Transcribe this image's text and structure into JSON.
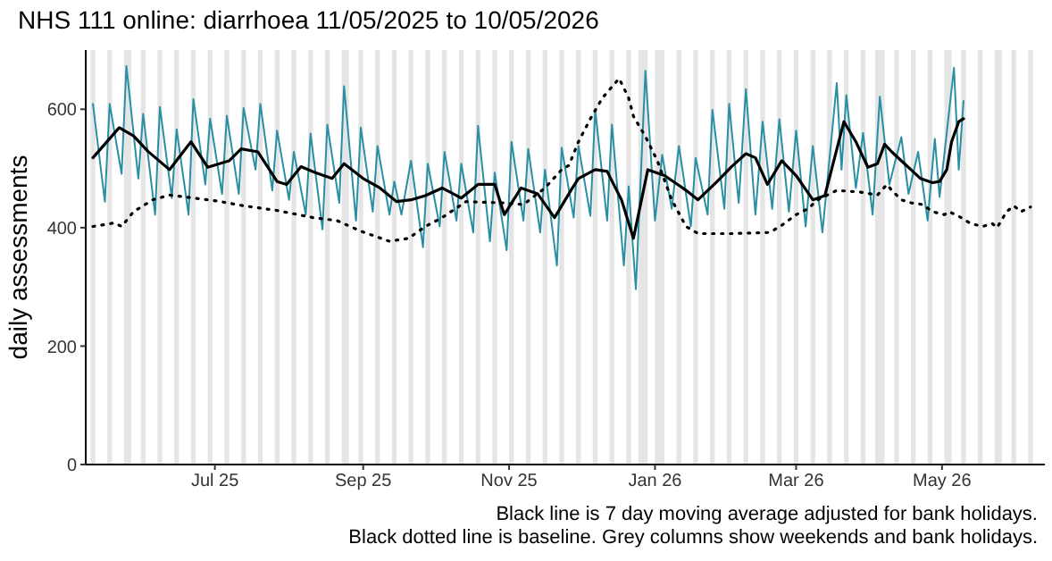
{
  "chart_data": {
    "type": "line",
    "title": "NHS 111 online: diarrhoea 11/05/2025 to 10/05/2026",
    "ylabel": "daily assessments",
    "xlim": [
      "2025-05-08",
      "2026-06-13"
    ],
    "xticks": [
      {
        "value": "2025-07-01",
        "label": "Jul 25"
      },
      {
        "value": "2025-09-01",
        "label": "Sep 25"
      },
      {
        "value": "2025-11-01",
        "label": "Nov 25"
      },
      {
        "value": "2026-01-01",
        "label": "Jan 26"
      },
      {
        "value": "2026-03-01",
        "label": "Mar 26"
      },
      {
        "value": "2026-05-01",
        "label": "May 26"
      }
    ],
    "ylim": [
      0,
      700
    ],
    "yticks": [
      0,
      200,
      400,
      600
    ],
    "annotations": [
      "Black line is 7 day moving average adjusted for bank holidays.",
      "Black dotted line is baseline. Grey columns show weekends and bank holidays."
    ],
    "bands": [
      {
        "axis": "x",
        "from": "2025-05-10",
        "to": "2025-05-12",
        "color": "#e5e5e5"
      },
      {
        "axis": "x",
        "from": "2025-05-17",
        "to": "2025-05-19",
        "color": "#e5e5e5"
      },
      {
        "axis": "x",
        "from": "2025-05-24",
        "to": "2025-05-27",
        "color": "#e5e5e5"
      },
      {
        "axis": "x",
        "from": "2025-05-31",
        "to": "2025-06-02",
        "color": "#e5e5e5"
      },
      {
        "axis": "x",
        "from": "2025-06-07",
        "to": "2025-06-09",
        "color": "#e5e5e5"
      },
      {
        "axis": "x",
        "from": "2025-06-14",
        "to": "2025-06-16",
        "color": "#e5e5e5"
      },
      {
        "axis": "x",
        "from": "2025-06-21",
        "to": "2025-06-23",
        "color": "#e5e5e5"
      },
      {
        "axis": "x",
        "from": "2025-06-28",
        "to": "2025-06-30",
        "color": "#e5e5e5"
      },
      {
        "axis": "x",
        "from": "2025-07-05",
        "to": "2025-07-07",
        "color": "#e5e5e5"
      },
      {
        "axis": "x",
        "from": "2025-07-12",
        "to": "2025-07-14",
        "color": "#e5e5e5"
      },
      {
        "axis": "x",
        "from": "2025-07-19",
        "to": "2025-07-21",
        "color": "#e5e5e5"
      },
      {
        "axis": "x",
        "from": "2025-07-26",
        "to": "2025-07-28",
        "color": "#e5e5e5"
      },
      {
        "axis": "x",
        "from": "2025-08-02",
        "to": "2025-08-04",
        "color": "#e5e5e5"
      },
      {
        "axis": "x",
        "from": "2025-08-09",
        "to": "2025-08-11",
        "color": "#e5e5e5"
      },
      {
        "axis": "x",
        "from": "2025-08-16",
        "to": "2025-08-18",
        "color": "#e5e5e5"
      },
      {
        "axis": "x",
        "from": "2025-08-23",
        "to": "2025-08-26",
        "color": "#e5e5e5"
      },
      {
        "axis": "x",
        "from": "2025-08-30",
        "to": "2025-09-01",
        "color": "#e5e5e5"
      },
      {
        "axis": "x",
        "from": "2025-09-06",
        "to": "2025-09-08",
        "color": "#e5e5e5"
      },
      {
        "axis": "x",
        "from": "2025-09-13",
        "to": "2025-09-15",
        "color": "#e5e5e5"
      },
      {
        "axis": "x",
        "from": "2025-09-20",
        "to": "2025-09-22",
        "color": "#e5e5e5"
      },
      {
        "axis": "x",
        "from": "2025-09-27",
        "to": "2025-09-29",
        "color": "#e5e5e5"
      },
      {
        "axis": "x",
        "from": "2025-10-04",
        "to": "2025-10-06",
        "color": "#e5e5e5"
      },
      {
        "axis": "x",
        "from": "2025-10-11",
        "to": "2025-10-13",
        "color": "#e5e5e5"
      },
      {
        "axis": "x",
        "from": "2025-10-18",
        "to": "2025-10-20",
        "color": "#e5e5e5"
      },
      {
        "axis": "x",
        "from": "2025-10-25",
        "to": "2025-10-27",
        "color": "#e5e5e5"
      },
      {
        "axis": "x",
        "from": "2025-11-01",
        "to": "2025-11-03",
        "color": "#e5e5e5"
      },
      {
        "axis": "x",
        "from": "2025-11-08",
        "to": "2025-11-10",
        "color": "#e5e5e5"
      },
      {
        "axis": "x",
        "from": "2025-11-15",
        "to": "2025-11-17",
        "color": "#e5e5e5"
      },
      {
        "axis": "x",
        "from": "2025-11-22",
        "to": "2025-11-24",
        "color": "#e5e5e5"
      },
      {
        "axis": "x",
        "from": "2025-11-29",
        "to": "2025-12-01",
        "color": "#e5e5e5"
      },
      {
        "axis": "x",
        "from": "2025-12-06",
        "to": "2025-12-08",
        "color": "#e5e5e5"
      },
      {
        "axis": "x",
        "from": "2025-12-13",
        "to": "2025-12-15",
        "color": "#e5e5e5"
      },
      {
        "axis": "x",
        "from": "2025-12-20",
        "to": "2025-12-22",
        "color": "#e5e5e5"
      },
      {
        "axis": "x",
        "from": "2025-12-25",
        "to": "2025-12-29",
        "color": "#e5e5e5"
      },
      {
        "axis": "x",
        "from": "2026-01-01",
        "to": "2026-01-05",
        "color": "#e5e5e5"
      },
      {
        "axis": "x",
        "from": "2026-01-10",
        "to": "2026-01-12",
        "color": "#e5e5e5"
      },
      {
        "axis": "x",
        "from": "2026-01-17",
        "to": "2026-01-19",
        "color": "#e5e5e5"
      },
      {
        "axis": "x",
        "from": "2026-01-24",
        "to": "2026-01-26",
        "color": "#e5e5e5"
      },
      {
        "axis": "x",
        "from": "2026-01-31",
        "to": "2026-02-02",
        "color": "#e5e5e5"
      },
      {
        "axis": "x",
        "from": "2026-02-07",
        "to": "2026-02-09",
        "color": "#e5e5e5"
      },
      {
        "axis": "x",
        "from": "2026-02-14",
        "to": "2026-02-16",
        "color": "#e5e5e5"
      },
      {
        "axis": "x",
        "from": "2026-02-21",
        "to": "2026-02-23",
        "color": "#e5e5e5"
      },
      {
        "axis": "x",
        "from": "2026-02-28",
        "to": "2026-03-02",
        "color": "#e5e5e5"
      },
      {
        "axis": "x",
        "from": "2026-03-07",
        "to": "2026-03-09",
        "color": "#e5e5e5"
      },
      {
        "axis": "x",
        "from": "2026-03-14",
        "to": "2026-03-16",
        "color": "#e5e5e5"
      },
      {
        "axis": "x",
        "from": "2026-03-21",
        "to": "2026-03-23",
        "color": "#e5e5e5"
      },
      {
        "axis": "x",
        "from": "2026-03-28",
        "to": "2026-03-30",
        "color": "#e5e5e5"
      },
      {
        "axis": "x",
        "from": "2026-04-03",
        "to": "2026-04-07",
        "color": "#e5e5e5"
      },
      {
        "axis": "x",
        "from": "2026-04-11",
        "to": "2026-04-13",
        "color": "#e5e5e5"
      },
      {
        "axis": "x",
        "from": "2026-04-18",
        "to": "2026-04-20",
        "color": "#e5e5e5"
      },
      {
        "axis": "x",
        "from": "2026-04-25",
        "to": "2026-04-27",
        "color": "#e5e5e5"
      },
      {
        "axis": "x",
        "from": "2026-05-02",
        "to": "2026-05-05",
        "color": "#e5e5e5"
      },
      {
        "axis": "x",
        "from": "2026-05-09",
        "to": "2026-05-11",
        "color": "#e5e5e5"
      },
      {
        "axis": "x",
        "from": "2026-05-16",
        "to": "2026-05-18",
        "color": "#e5e5e5"
      },
      {
        "axis": "x",
        "from": "2026-05-23",
        "to": "2026-05-26",
        "color": "#e5e5e5"
      },
      {
        "axis": "x",
        "from": "2026-05-30",
        "to": "2026-06-01",
        "color": "#e5e5e5"
      },
      {
        "axis": "x",
        "from": "2026-06-06",
        "to": "2026-06-08",
        "color": "#e5e5e5"
      }
    ],
    "series": [
      {
        "color": "#2a8fa3",
        "x": [
          "2025-05-11",
          "2025-05-16",
          "2025-05-18",
          "2025-05-23",
          "2025-05-25",
          "2025-05-30",
          "2025-06-01",
          "2025-06-06",
          "2025-06-08",
          "2025-06-13",
          "2025-06-15",
          "2025-06-20",
          "2025-06-22",
          "2025-06-27",
          "2025-06-29",
          "2025-07-04",
          "2025-07-06",
          "2025-07-11",
          "2025-07-13",
          "2025-07-18",
          "2025-07-20",
          "2025-07-25",
          "2025-07-27",
          "2025-08-01",
          "2025-08-03",
          "2025-08-08",
          "2025-08-10",
          "2025-08-15",
          "2025-08-17",
          "2025-08-22",
          "2025-08-24",
          "2025-08-29",
          "2025-08-31",
          "2025-09-05",
          "2025-09-07",
          "2025-09-12",
          "2025-09-14",
          "2025-09-17",
          "2025-09-21",
          "2025-09-26",
          "2025-09-28",
          "2025-10-03",
          "2025-10-05",
          "2025-10-10",
          "2025-10-12",
          "2025-10-17",
          "2025-10-19",
          "2025-10-24",
          "2025-10-26",
          "2025-10-31",
          "2025-11-02",
          "2025-11-07",
          "2025-11-09",
          "2025-11-14",
          "2025-11-16",
          "2025-11-21",
          "2025-11-23",
          "2025-11-28",
          "2025-11-30",
          "2025-12-05",
          "2025-12-07",
          "2025-12-12",
          "2025-12-14",
          "2025-12-19",
          "2025-12-21",
          "2025-12-24",
          "2025-12-28",
          "2026-01-01",
          "2026-01-04",
          "2026-01-08",
          "2026-01-11",
          "2026-01-16",
          "2026-01-18",
          "2026-01-23",
          "2026-01-25",
          "2026-01-30",
          "2026-02-01",
          "2026-02-05",
          "2026-02-08",
          "2026-02-12",
          "2026-02-15",
          "2026-02-19",
          "2026-02-22",
          "2026-02-26",
          "2026-03-01",
          "2026-03-05",
          "2026-03-08",
          "2026-03-12",
          "2026-03-18",
          "2026-03-20",
          "2026-03-22",
          "2026-03-26",
          "2026-03-29",
          "2026-04-02",
          "2026-04-05",
          "2026-04-09",
          "2026-04-14",
          "2026-04-17",
          "2026-04-21",
          "2026-04-25",
          "2026-04-28",
          "2026-04-30",
          "2026-05-06",
          "2026-05-08",
          "2026-05-10"
        ],
        "values": [
          609,
          444,
          609,
          491,
          673,
          483,
          592,
          422,
          604,
          450,
          566,
          422,
          617,
          473,
          584,
          457,
          589,
          457,
          602,
          498,
          609,
          463,
          564,
          447,
          528,
          422,
          559,
          397,
          574,
          442,
          639,
          412,
          569,
          427,
          538,
          422,
          478,
          422,
          513,
          367,
          508,
          402,
          528,
          412,
          508,
          392,
          572,
          377,
          493,
          362,
          545,
          412,
          533,
          392,
          498,
          336,
          535,
          417,
          538,
          420,
          599,
          412,
          574,
          336,
          470,
          296,
          665,
          412,
          523,
          432,
          538,
          402,
          518,
          422,
          599,
          432,
          609,
          442,
          634,
          422,
          579,
          432,
          583,
          427,
          564,
          402,
          538,
          392,
          644,
          498,
          624,
          467,
          560,
          422,
          621,
          473,
          553,
          457,
          528,
          412,
          550,
          452,
          670,
          498,
          614
        ]
      },
      {
        "color": "#000000",
        "x": [
          "2025-05-11",
          "2025-05-22",
          "2025-05-28",
          "2025-06-03",
          "2025-06-12",
          "2025-06-21",
          "2025-06-28",
          "2025-07-07",
          "2025-07-12",
          "2025-07-19",
          "2025-07-27",
          "2025-07-31",
          "2025-08-06",
          "2025-08-12",
          "2025-08-19",
          "2025-08-24",
          "2025-09-01",
          "2025-09-08",
          "2025-09-15",
          "2025-09-21",
          "2025-09-27",
          "2025-10-04",
          "2025-10-12",
          "2025-10-19",
          "2025-10-26",
          "2025-10-30",
          "2025-11-06",
          "2025-11-13",
          "2025-11-20",
          "2025-11-23",
          "2025-11-27",
          "2025-11-30",
          "2025-12-07",
          "2025-12-12",
          "2025-12-18",
          "2025-12-23",
          "2025-12-29",
          "2026-01-05",
          "2026-01-14",
          "2026-01-19",
          "2026-01-27",
          "2026-02-02",
          "2026-02-08",
          "2026-02-12",
          "2026-02-17",
          "2026-02-23",
          "2026-03-01",
          "2026-03-08",
          "2026-03-13",
          "2026-03-21",
          "2026-03-26",
          "2026-03-31",
          "2026-04-04",
          "2026-04-07",
          "2026-04-10",
          "2026-04-14",
          "2026-04-22",
          "2026-04-27",
          "2026-04-30",
          "2026-05-03",
          "2026-05-05",
          "2026-05-08",
          "2026-05-10"
        ],
        "values": [
          518,
          569,
          555,
          529,
          498,
          545,
          502,
          513,
          533,
          528,
          478,
          473,
          503,
          493,
          483,
          508,
          483,
          467,
          444,
          447,
          454,
          467,
          450,
          473,
          473,
          422,
          467,
          457,
          417,
          437,
          464,
          483,
          498,
          495,
          447,
          382,
          498,
          488,
          463,
          447,
          478,
          503,
          525,
          518,
          473,
          513,
          488,
          447,
          454,
          579,
          545,
          502,
          508,
          541,
          528,
          513,
          483,
          476,
          478,
          498,
          545,
          579,
          584
        ]
      },
      {
        "color": "#000000",
        "line_style": "dotted",
        "x": [
          "2025-05-11",
          "2025-05-20",
          "2025-05-23",
          "2025-05-28",
          "2025-06-05",
          "2025-06-12",
          "2025-06-22",
          "2025-07-02",
          "2025-07-13",
          "2025-07-27",
          "2025-08-11",
          "2025-08-21",
          "2025-08-31",
          "2025-09-12",
          "2025-09-20",
          "2025-09-27",
          "2025-10-04",
          "2025-10-14",
          "2025-10-29",
          "2025-11-07",
          "2025-11-16",
          "2025-11-23",
          "2025-11-26",
          "2025-11-30",
          "2025-12-05",
          "2025-12-10",
          "2025-12-17",
          "2025-12-21",
          "2025-12-23",
          "2025-12-28",
          "2026-01-02",
          "2026-01-08",
          "2026-01-14",
          "2026-01-19",
          "2026-01-27",
          "2026-02-02",
          "2026-02-18",
          "2026-02-23",
          "2026-03-01",
          "2026-03-06",
          "2026-03-10",
          "2026-03-18",
          "2026-03-28",
          "2026-04-04",
          "2026-04-08",
          "2026-04-10",
          "2026-04-14",
          "2026-04-18",
          "2026-04-23",
          "2026-04-27",
          "2026-05-02",
          "2026-05-04",
          "2026-05-09",
          "2026-05-13",
          "2026-05-18",
          "2026-05-22",
          "2026-05-24",
          "2026-05-28",
          "2026-05-31",
          "2026-06-03",
          "2026-06-07"
        ],
        "values": [
          402,
          408,
          402,
          427,
          447,
          455,
          450,
          445,
          437,
          429,
          417,
          412,
          394,
          377,
          382,
          402,
          417,
          444,
          442,
          439,
          467,
          498,
          505,
          545,
          584,
          619,
          652,
          619,
          588,
          554,
          513,
          447,
          402,
          390,
          390,
          390,
          392,
          404,
          422,
          432,
          447,
          463,
          460,
          455,
          473,
          463,
          447,
          442,
          439,
          427,
          422,
          427,
          417,
          407,
          402,
          407,
          400,
          427,
          437,
          427,
          435
        ]
      }
    ]
  }
}
